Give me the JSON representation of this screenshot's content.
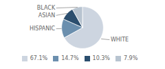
{
  "chart_data": {
    "type": "pie",
    "categories": [
      "WHITE",
      "HISPANIC",
      "ASIAN",
      "BLACK"
    ],
    "values": [
      67.1,
      14.7,
      10.3,
      7.9
    ],
    "value_labels": [
      "67.1%",
      "14.7%",
      "10.3%",
      "7.9%"
    ],
    "colors": [
      "#cdd5e0",
      "#6b8fae",
      "#2b4e6e",
      "#b8c4d0"
    ],
    "legend": "bottom"
  }
}
